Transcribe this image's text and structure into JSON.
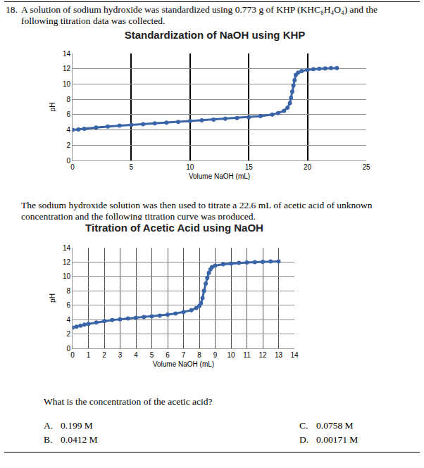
{
  "document": {
    "number": "18.",
    "intro": "A solution of sodium hydroxide was standardized using 0.773 g of KHP (KHC₈H₄O₄) and the following titration data was collected.",
    "middle": "The sodium hydroxide solution was then used to titrate a 22.6 mL of acetic acid of unknown concentration and the following titration curve was produced.",
    "question": "What is the concentration of the acetic acid?",
    "choices": [
      {
        "letter": "A.",
        "text": "0.199 M"
      },
      {
        "letter": "B.",
        "text": "0.0412 M"
      },
      {
        "letter": "C.",
        "text": "0.0758 M"
      },
      {
        "letter": "D.",
        "text": "0.00171 M"
      }
    ]
  },
  "chart_data": [
    {
      "type": "line",
      "title": "Standardization of NaOH using KHP",
      "x_label": "Volume NaOH (mL)",
      "y_label": "pH",
      "x": [
        0,
        0.5,
        1,
        2,
        3,
        4,
        5,
        6,
        7,
        8,
        9,
        10,
        11,
        12,
        13,
        14,
        15,
        16,
        17,
        17.5,
        18,
        18.3,
        18.5,
        18.6,
        18.7,
        18.8,
        18.9,
        19,
        19.2,
        19.5,
        20,
        20.5,
        21,
        21.5,
        22,
        22.5
      ],
      "values": [
        4.0,
        4.05,
        4.15,
        4.3,
        4.45,
        4.55,
        4.65,
        4.75,
        4.85,
        4.95,
        5.05,
        5.15,
        5.25,
        5.35,
        5.45,
        5.55,
        5.65,
        5.8,
        6.0,
        6.2,
        6.5,
        6.9,
        7.5,
        8.2,
        9.0,
        9.8,
        10.5,
        11.2,
        11.5,
        11.7,
        11.85,
        11.95,
        12.0,
        12.05,
        12.1,
        12.1
      ],
      "color": "#3a64a8",
      "marker": "circle",
      "xlim": [
        0,
        25
      ],
      "xticks": [
        0,
        5,
        10,
        15,
        20,
        25
      ],
      "ylim": [
        0,
        14
      ],
      "yticks": [
        0,
        2,
        4,
        6,
        8,
        10,
        12,
        14
      ],
      "grid": true
    },
    {
      "type": "line",
      "title": "Titration of Acetic Acid using NaOH",
      "x_label": "Volume NaOH (mL)",
      "y_label": "pH",
      "x": [
        0,
        0.25,
        0.5,
        0.75,
        1,
        1.5,
        2,
        2.5,
        3,
        3.5,
        4,
        4.5,
        5,
        5.5,
        6,
        6.5,
        7,
        7.5,
        7.8,
        8,
        8.1,
        8.2,
        8.3,
        8.4,
        8.5,
        8.6,
        8.7,
        8.8,
        9,
        9.5,
        10,
        10.5,
        11,
        11.5,
        12,
        12.5,
        13
      ],
      "values": [
        2.9,
        3.0,
        3.15,
        3.3,
        3.4,
        3.6,
        3.8,
        3.95,
        4.05,
        4.15,
        4.25,
        4.35,
        4.45,
        4.55,
        4.7,
        4.85,
        5.05,
        5.3,
        5.6,
        5.9,
        6.3,
        7.0,
        8.0,
        9.0,
        9.8,
        10.5,
        11.0,
        11.3,
        11.5,
        11.7,
        11.8,
        11.9,
        11.95,
        12.0,
        12.05,
        12.1,
        12.1
      ],
      "color": "#3a64a8",
      "marker": "circle",
      "xlim": [
        0,
        14
      ],
      "xticks": [
        0,
        1,
        2,
        3,
        4,
        5,
        6,
        7,
        8,
        9,
        10,
        11,
        12,
        13,
        14
      ],
      "ylim": [
        0,
        14
      ],
      "yticks": [
        0,
        2,
        4,
        6,
        8,
        10,
        12,
        14
      ],
      "grid": true
    }
  ]
}
